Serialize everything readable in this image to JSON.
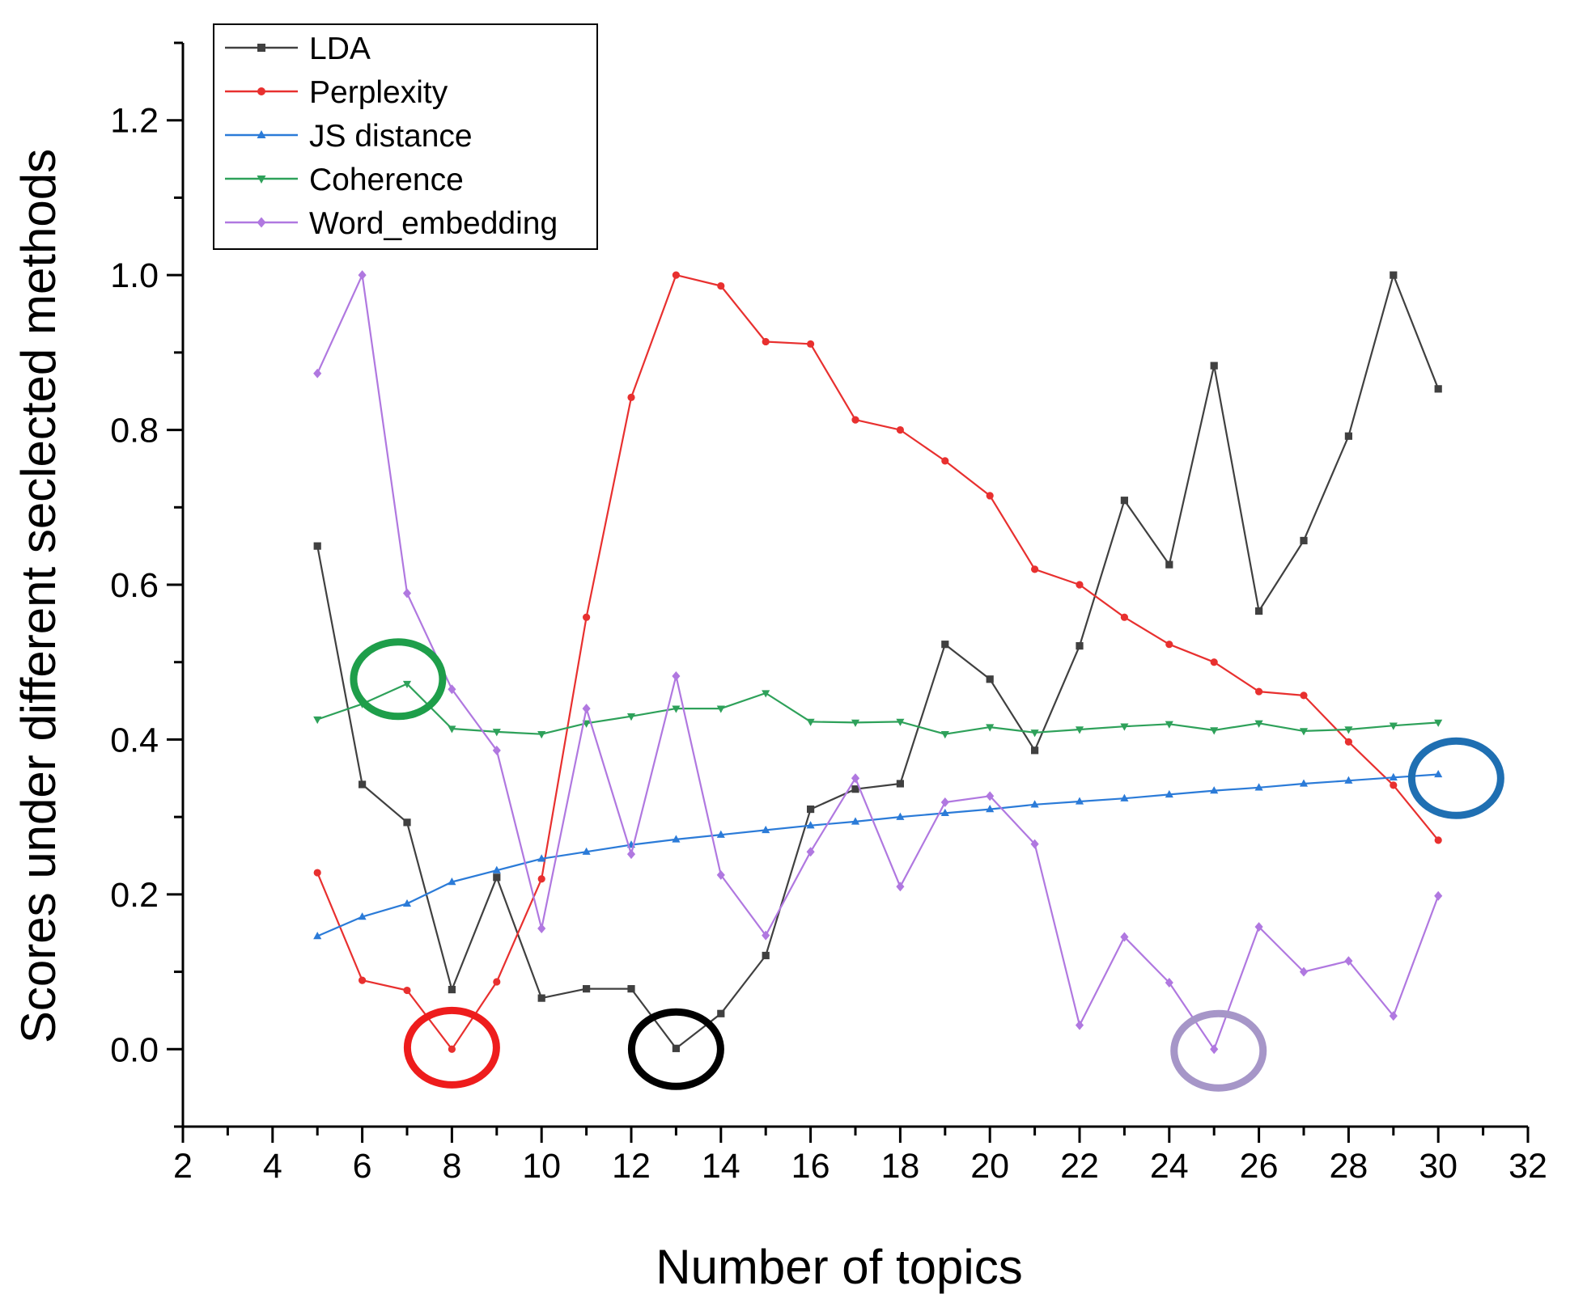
{
  "chart_data": {
    "type": "line",
    "title": "",
    "xlabel": "Number of topics",
    "ylabel": "Scores under different seclected methods",
    "xlim": [
      2,
      32
    ],
    "ylim": [
      -0.1,
      1.3
    ],
    "x_ticks": [
      2,
      4,
      6,
      8,
      10,
      12,
      14,
      16,
      18,
      20,
      22,
      24,
      26,
      28,
      30,
      32
    ],
    "x_tick_labels": [
      "2",
      "4",
      "6",
      "8",
      "10",
      "12",
      "14",
      "16",
      "18",
      "20",
      "22",
      "24",
      "26",
      "28",
      "30",
      "32"
    ],
    "y_ticks": [
      0.0,
      0.2,
      0.4,
      0.6,
      0.8,
      1.0,
      1.2
    ],
    "y_tick_labels": [
      "0.0",
      "0.2",
      "0.4",
      "0.6",
      "0.8",
      "1.0",
      "1.2"
    ],
    "grid": false,
    "legend_position": "top-left",
    "x": [
      5,
      6,
      7,
      8,
      9,
      10,
      11,
      12,
      13,
      14,
      15,
      16,
      17,
      18,
      19,
      20,
      21,
      22,
      23,
      24,
      25,
      26,
      27,
      28,
      29,
      30
    ],
    "series": [
      {
        "name": "LDA",
        "color": "#404040",
        "marker": "square",
        "values": [
          0.65,
          0.342,
          0.293,
          0.077,
          0.222,
          0.066,
          0.078,
          0.078,
          0.001,
          0.046,
          0.121,
          0.31,
          0.336,
          0.343,
          0.523,
          0.478,
          0.386,
          0.521,
          0.709,
          0.626,
          0.883,
          0.566,
          0.657,
          0.792,
          1.0,
          0.853
        ]
      },
      {
        "name": "Perplexity",
        "color": "#e8302f",
        "marker": "circle",
        "values": [
          0.228,
          0.089,
          0.076,
          0.0,
          0.087,
          0.22,
          0.558,
          0.842,
          1.0,
          0.986,
          0.914,
          0.911,
          0.813,
          0.8,
          0.76,
          0.715,
          0.62,
          0.6,
          0.558,
          0.523,
          0.5,
          0.462,
          0.457,
          0.397,
          0.341,
          0.27
        ]
      },
      {
        "name": "JS distance",
        "color": "#2b7bd8",
        "marker": "triangle-up",
        "values": [
          0.146,
          0.171,
          0.188,
          0.216,
          0.231,
          0.246,
          0.255,
          0.264,
          0.271,
          0.277,
          0.283,
          0.289,
          0.294,
          0.3,
          0.305,
          0.31,
          0.316,
          0.32,
          0.324,
          0.329,
          0.334,
          0.338,
          0.343,
          0.347,
          0.351,
          0.355
        ]
      },
      {
        "name": "Coherence",
        "color": "#2ea15a",
        "marker": "triangle-down",
        "values": [
          0.426,
          0.446,
          0.472,
          0.414,
          0.41,
          0.407,
          0.421,
          0.43,
          0.44,
          0.44,
          0.46,
          0.423,
          0.422,
          0.423,
          0.407,
          0.416,
          0.409,
          0.413,
          0.417,
          0.42,
          0.412,
          0.421,
          0.411,
          0.413,
          0.418,
          0.422
        ]
      },
      {
        "name": "Word_embedding",
        "color": "#b078e0",
        "marker": "diamond",
        "values": [
          0.873,
          1.0,
          0.589,
          0.465,
          0.386,
          0.156,
          0.44,
          0.252,
          0.482,
          0.225,
          0.147,
          0.255,
          0.35,
          0.21,
          0.319,
          0.327,
          0.265,
          0.031,
          0.145,
          0.086,
          0.0,
          0.158,
          0.1,
          0.114,
          0.043,
          0.198
        ]
      }
    ],
    "annotations": [
      {
        "name": "coherence-max-circle",
        "shape": "ellipse",
        "x": 6.8,
        "y": 0.478,
        "color": "#1e9e4a"
      },
      {
        "name": "perplexity-min-circle",
        "shape": "ellipse",
        "x": 8.0,
        "y": 0.002,
        "color": "#ee1c1c"
      },
      {
        "name": "lda-min-circle",
        "shape": "ellipse",
        "x": 13.0,
        "y": 0.0,
        "color": "#000000"
      },
      {
        "name": "word-embedding-min-circle",
        "shape": "ellipse",
        "x": 25.1,
        "y": -0.002,
        "color": "#a696c8"
      },
      {
        "name": "js-distance-max-circle",
        "shape": "ellipse",
        "x": 30.4,
        "y": 0.35,
        "color": "#1f6fb2"
      }
    ]
  }
}
